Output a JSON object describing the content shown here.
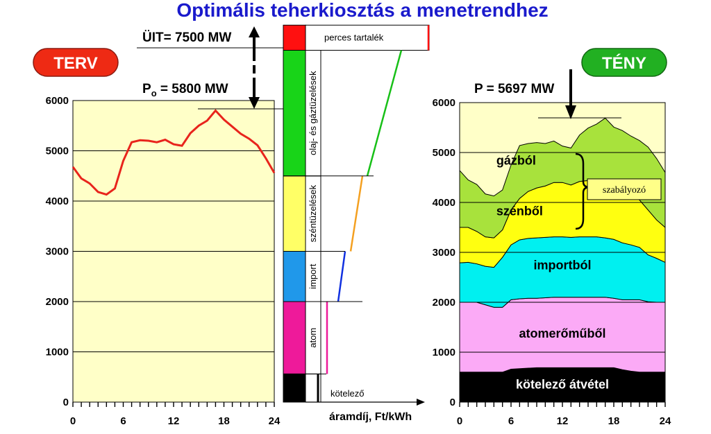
{
  "title": "Optimális teherkiosztás a menetrendhez",
  "badges": {
    "plan": "TERV",
    "actual": "TÉNY"
  },
  "annotations": {
    "uit": "ÜIT= 7500 MW",
    "po_prefix": "P",
    "po_sub": "o",
    "po_value": " = 5800 MW",
    "p_actual": "P = 5697 MW",
    "price_axis": "áramdíj, Ft/kWh",
    "regulating": "szabályozó"
  },
  "colors": {
    "plot_bg": "#ffffc8",
    "plan_line": "#e8241c",
    "badge_plan": "#ee2a14",
    "badge_actual": "#22b022",
    "title": "#1a1acc"
  },
  "chart_data": [
    {
      "type": "line",
      "name": "TERV",
      "xticks": [
        "0",
        "6",
        "12",
        "18",
        "24"
      ],
      "yticks": [
        "0",
        "1000",
        "2000",
        "3000",
        "4000",
        "5000",
        "6000"
      ],
      "xlim": [
        0,
        24
      ],
      "ylim": [
        0,
        6000
      ],
      "grid": "horizontal",
      "series": [
        {
          "x": [
            0,
            1,
            2,
            3,
            4,
            5,
            6,
            7,
            8,
            9,
            10,
            11,
            12,
            13,
            14,
            15,
            16,
            17,
            18,
            19,
            20,
            21,
            22,
            23,
            24
          ],
          "values": [
            4680,
            4450,
            4350,
            4180,
            4130,
            4250,
            4800,
            5170,
            5210,
            5200,
            5170,
            5220,
            5130,
            5100,
            5350,
            5500,
            5600,
            5800,
            5620,
            5480,
            5340,
            5240,
            5110,
            4850,
            4560
          ]
        }
      ]
    },
    {
      "type": "bar",
      "name": "merit-order",
      "xlabel": "áramdíj, Ft/kWh",
      "blocks": [
        {
          "label": "kötelező",
          "from": 0,
          "to": 560,
          "color": "#000000",
          "line_color": "#000000"
        },
        {
          "label": "atom",
          "from": 560,
          "to": 2000,
          "color": "#ee1a9a",
          "line_color": "#ee1a9a"
        },
        {
          "label": "import",
          "from": 2000,
          "to": 3000,
          "color": "#2098ea",
          "line_color": "#1030e0"
        },
        {
          "label": "széntüzelések",
          "from": 3000,
          "to": 4500,
          "color": "#ffff66",
          "line_color": "#f4a020"
        },
        {
          "label": "olaj- és gáztüzelések",
          "from": 4500,
          "to": 7000,
          "color": "#18d418",
          "line_color": "#18c018"
        },
        {
          "label": "perces tartalék",
          "from": 7000,
          "to": 7500,
          "color": "#ff1010",
          "line_color": "#ff1010"
        }
      ]
    },
    {
      "type": "area",
      "name": "TÉNY",
      "xticks": [
        "0",
        "6",
        "12",
        "18",
        "24"
      ],
      "yticks": [
        "0",
        "1000",
        "2000",
        "3000",
        "4000",
        "5000",
        "6000"
      ],
      "xlim": [
        0,
        24
      ],
      "ylim": [
        0,
        6000
      ],
      "grid": "horizontal",
      "x": [
        0,
        1,
        2,
        3,
        4,
        5,
        6,
        7,
        8,
        9,
        10,
        11,
        12,
        13,
        14,
        15,
        16,
        17,
        18,
        19,
        20,
        21,
        22,
        23,
        24
      ],
      "series": [
        {
          "name": "kötelező átvétel",
          "color": "#000000",
          "values": [
            600,
            600,
            600,
            600,
            600,
            600,
            660,
            670,
            680,
            690,
            690,
            690,
            690,
            690,
            690,
            690,
            690,
            690,
            690,
            650,
            620,
            600,
            600,
            600,
            600
          ]
        },
        {
          "name": "atomerőműből",
          "color": "#fbaaf6",
          "values": [
            2000,
            2000,
            2000,
            1950,
            1900,
            1900,
            2050,
            2070,
            2080,
            2080,
            2090,
            2100,
            2100,
            2100,
            2100,
            2100,
            2100,
            2100,
            2080,
            2050,
            2050,
            2050,
            2010,
            2000,
            2000
          ]
        },
        {
          "name": "importból",
          "color": "#00f0f0",
          "values": [
            2790,
            2800,
            2770,
            2720,
            2700,
            2900,
            3150,
            3250,
            3280,
            3290,
            3300,
            3310,
            3310,
            3300,
            3310,
            3310,
            3310,
            3290,
            3260,
            3190,
            3150,
            3100,
            2950,
            2880,
            2800
          ]
        },
        {
          "name": "szénből",
          "color": "#ffff10",
          "values": [
            3500,
            3500,
            3420,
            3310,
            3290,
            3450,
            3850,
            4080,
            4220,
            4290,
            4330,
            4400,
            4400,
            4350,
            4420,
            4440,
            4470,
            4450,
            4380,
            4280,
            4150,
            4050,
            3850,
            3650,
            3500
          ]
        },
        {
          "name": "gázból",
          "color": "#a8e23c",
          "values": [
            4640,
            4450,
            4360,
            4170,
            4130,
            4250,
            4750,
            5140,
            5180,
            5200,
            5180,
            5230,
            5130,
            5090,
            5350,
            5490,
            5570,
            5690,
            5510,
            5440,
            5330,
            5240,
            5110,
            4880,
            4600
          ]
        }
      ]
    }
  ]
}
